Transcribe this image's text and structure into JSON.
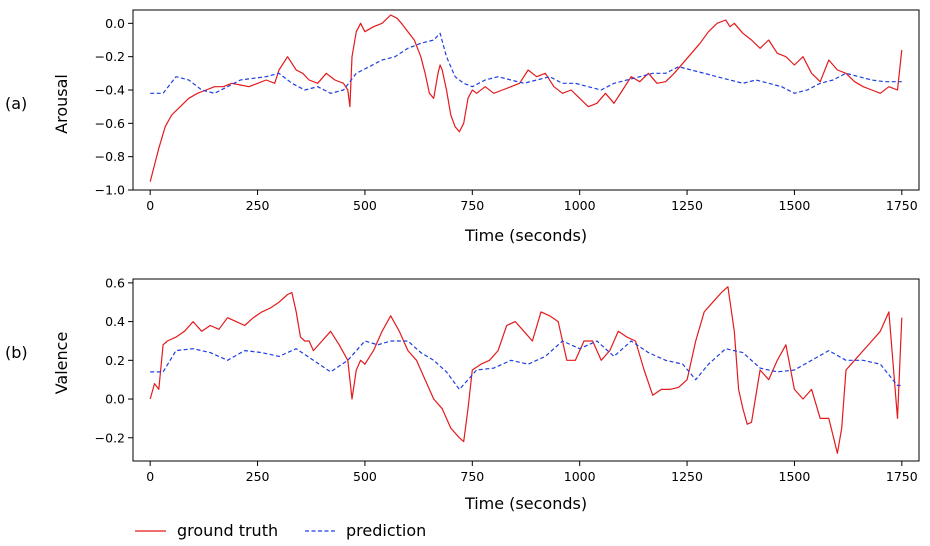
{
  "chart_data": [
    {
      "type": "line",
      "panel_label": "(a)",
      "xlabel": "Time (seconds)",
      "ylabel": "Arousal",
      "xlim": [
        -40,
        1790
      ],
      "ylim": [
        -1.0,
        0.08
      ],
      "xticks": [
        0,
        250,
        500,
        750,
        1000,
        1250,
        1500,
        1750
      ],
      "xtick_labels": [
        "0",
        "250",
        "500",
        "750",
        "1000",
        "1250",
        "1500",
        "1750"
      ],
      "yticks": [
        0.0,
        -0.2,
        -0.4,
        -0.6,
        -0.8,
        -1.0
      ],
      "ytick_labels": [
        "0.0",
        "−0.2",
        "−0.4",
        "−0.6",
        "−0.8",
        "−1.0"
      ],
      "grid": false,
      "series": [
        {
          "name": "ground truth",
          "color": "#e41a1c",
          "dash": "solid",
          "x": [
            0,
            10,
            20,
            35,
            50,
            70,
            90,
            110,
            130,
            150,
            170,
            190,
            210,
            230,
            250,
            270,
            290,
            300,
            320,
            340,
            355,
            370,
            390,
            410,
            430,
            450,
            460,
            465,
            470,
            480,
            490,
            500,
            520,
            540,
            560,
            575,
            585,
            600,
            615,
            630,
            640,
            650,
            660,
            670,
            675,
            680,
            690,
            700,
            710,
            720,
            730,
            740,
            750,
            760,
            780,
            800,
            820,
            840,
            860,
            880,
            900,
            920,
            940,
            960,
            980,
            1000,
            1020,
            1040,
            1060,
            1080,
            1100,
            1120,
            1140,
            1160,
            1180,
            1200,
            1220,
            1240,
            1260,
            1280,
            1300,
            1320,
            1340,
            1350,
            1360,
            1380,
            1400,
            1420,
            1440,
            1460,
            1480,
            1500,
            1520,
            1540,
            1560,
            1580,
            1600,
            1620,
            1640,
            1660,
            1680,
            1700,
            1720,
            1740,
            1750
          ],
          "y": [
            -0.95,
            -0.85,
            -0.75,
            -0.62,
            -0.55,
            -0.5,
            -0.45,
            -0.42,
            -0.4,
            -0.38,
            -0.38,
            -0.36,
            -0.37,
            -0.38,
            -0.36,
            -0.34,
            -0.36,
            -0.28,
            -0.2,
            -0.28,
            -0.3,
            -0.34,
            -0.36,
            -0.3,
            -0.34,
            -0.36,
            -0.4,
            -0.5,
            -0.2,
            -0.05,
            0.0,
            -0.05,
            -0.02,
            0.0,
            0.05,
            0.03,
            0.0,
            -0.05,
            -0.1,
            -0.2,
            -0.3,
            -0.42,
            -0.45,
            -0.3,
            -0.25,
            -0.28,
            -0.4,
            -0.55,
            -0.62,
            -0.65,
            -0.6,
            -0.45,
            -0.4,
            -0.42,
            -0.38,
            -0.42,
            -0.4,
            -0.38,
            -0.36,
            -0.28,
            -0.32,
            -0.3,
            -0.38,
            -0.42,
            -0.4,
            -0.45,
            -0.5,
            -0.48,
            -0.42,
            -0.48,
            -0.4,
            -0.32,
            -0.35,
            -0.3,
            -0.36,
            -0.35,
            -0.3,
            -0.24,
            -0.18,
            -0.12,
            -0.05,
            0.0,
            0.02,
            -0.02,
            0.0,
            -0.06,
            -0.1,
            -0.15,
            -0.1,
            -0.18,
            -0.2,
            -0.25,
            -0.2,
            -0.3,
            -0.35,
            -0.22,
            -0.28,
            -0.3,
            -0.35,
            -0.38,
            -0.4,
            -0.42,
            -0.38,
            -0.4,
            -0.16
          ]
        },
        {
          "name": "prediction",
          "color": "#1f3fe0",
          "dash": "dashed",
          "x": [
            0,
            30,
            60,
            90,
            120,
            150,
            180,
            210,
            240,
            270,
            300,
            330,
            360,
            390,
            420,
            450,
            480,
            510,
            540,
            570,
            600,
            630,
            660,
            675,
            690,
            710,
            730,
            750,
            780,
            810,
            840,
            870,
            900,
            930,
            960,
            990,
            1020,
            1050,
            1080,
            1110,
            1140,
            1170,
            1200,
            1230,
            1260,
            1290,
            1320,
            1350,
            1380,
            1410,
            1440,
            1470,
            1500,
            1530,
            1560,
            1590,
            1620,
            1650,
            1680,
            1710,
            1740,
            1750
          ],
          "y": [
            -0.42,
            -0.42,
            -0.32,
            -0.34,
            -0.4,
            -0.42,
            -0.38,
            -0.34,
            -0.33,
            -0.32,
            -0.3,
            -0.36,
            -0.4,
            -0.38,
            -0.42,
            -0.4,
            -0.3,
            -0.26,
            -0.22,
            -0.2,
            -0.15,
            -0.12,
            -0.1,
            -0.06,
            -0.2,
            -0.32,
            -0.36,
            -0.38,
            -0.34,
            -0.32,
            -0.34,
            -0.36,
            -0.34,
            -0.32,
            -0.36,
            -0.36,
            -0.38,
            -0.4,
            -0.36,
            -0.34,
            -0.32,
            -0.3,
            -0.3,
            -0.26,
            -0.28,
            -0.3,
            -0.32,
            -0.34,
            -0.36,
            -0.34,
            -0.36,
            -0.38,
            -0.42,
            -0.4,
            -0.36,
            -0.34,
            -0.3,
            -0.32,
            -0.34,
            -0.35,
            -0.35,
            -0.35
          ]
        }
      ]
    },
    {
      "type": "line",
      "panel_label": "(b)",
      "xlabel": "Time (seconds)",
      "ylabel": "Valence",
      "xlim": [
        -40,
        1790
      ],
      "ylim": [
        -0.32,
        0.62
      ],
      "xticks": [
        0,
        250,
        500,
        750,
        1000,
        1250,
        1500,
        1750
      ],
      "xtick_labels": [
        "0",
        "250",
        "500",
        "750",
        "1000",
        "1250",
        "1500",
        "1750"
      ],
      "yticks": [
        0.6,
        0.4,
        0.2,
        0.0,
        -0.2
      ],
      "ytick_labels": [
        "0.6",
        "0.4",
        "0.2",
        "0.0",
        "−0.2"
      ],
      "grid": false,
      "series": [
        {
          "name": "ground truth",
          "color": "#e41a1c",
          "dash": "solid",
          "x": [
            0,
            10,
            20,
            30,
            40,
            60,
            80,
            100,
            120,
            140,
            160,
            180,
            200,
            220,
            240,
            260,
            280,
            300,
            320,
            330,
            340,
            350,
            360,
            370,
            380,
            400,
            420,
            440,
            460,
            470,
            480,
            490,
            500,
            520,
            540,
            560,
            580,
            600,
            620,
            640,
            660,
            680,
            700,
            720,
            730,
            740,
            750,
            770,
            790,
            810,
            830,
            850,
            870,
            890,
            910,
            930,
            950,
            970,
            990,
            1010,
            1030,
            1050,
            1070,
            1090,
            1110,
            1130,
            1150,
            1170,
            1190,
            1210,
            1230,
            1250,
            1270,
            1290,
            1310,
            1330,
            1345,
            1360,
            1370,
            1380,
            1390,
            1400,
            1420,
            1440,
            1460,
            1480,
            1500,
            1520,
            1540,
            1560,
            1580,
            1600,
            1610,
            1620,
            1640,
            1660,
            1680,
            1700,
            1720,
            1740,
            1750
          ],
          "y": [
            0.0,
            0.08,
            0.05,
            0.28,
            0.3,
            0.32,
            0.35,
            0.4,
            0.35,
            0.38,
            0.36,
            0.42,
            0.4,
            0.38,
            0.42,
            0.45,
            0.47,
            0.5,
            0.54,
            0.55,
            0.45,
            0.32,
            0.3,
            0.3,
            0.25,
            0.3,
            0.35,
            0.28,
            0.2,
            0.0,
            0.15,
            0.2,
            0.18,
            0.25,
            0.35,
            0.43,
            0.35,
            0.25,
            0.2,
            0.1,
            0.0,
            -0.05,
            -0.15,
            -0.2,
            -0.22,
            -0.05,
            0.15,
            0.18,
            0.2,
            0.25,
            0.38,
            0.4,
            0.35,
            0.3,
            0.45,
            0.43,
            0.4,
            0.2,
            0.2,
            0.3,
            0.3,
            0.2,
            0.25,
            0.35,
            0.32,
            0.3,
            0.15,
            0.02,
            0.05,
            0.05,
            0.06,
            0.1,
            0.3,
            0.45,
            0.5,
            0.55,
            0.58,
            0.35,
            0.05,
            -0.05,
            -0.13,
            -0.12,
            0.15,
            0.1,
            0.2,
            0.28,
            0.05,
            0.0,
            0.05,
            -0.1,
            -0.1,
            -0.28,
            -0.15,
            0.15,
            0.2,
            0.25,
            0.3,
            0.35,
            0.45,
            -0.1,
            0.42
          ]
        },
        {
          "name": "prediction",
          "color": "#1f3fe0",
          "dash": "dashed",
          "x": [
            0,
            30,
            60,
            100,
            140,
            180,
            220,
            260,
            300,
            340,
            380,
            420,
            460,
            500,
            530,
            560,
            600,
            630,
            660,
            690,
            720,
            740,
            760,
            800,
            840,
            880,
            920,
            960,
            1000,
            1040,
            1080,
            1120,
            1160,
            1200,
            1240,
            1270,
            1300,
            1340,
            1380,
            1420,
            1460,
            1500,
            1540,
            1580,
            1620,
            1660,
            1700,
            1740,
            1750
          ],
          "y": [
            0.14,
            0.14,
            0.25,
            0.26,
            0.24,
            0.2,
            0.25,
            0.24,
            0.22,
            0.26,
            0.2,
            0.14,
            0.2,
            0.3,
            0.28,
            0.3,
            0.3,
            0.24,
            0.2,
            0.14,
            0.05,
            0.1,
            0.15,
            0.16,
            0.2,
            0.18,
            0.22,
            0.3,
            0.26,
            0.3,
            0.22,
            0.3,
            0.24,
            0.2,
            0.18,
            0.1,
            0.18,
            0.26,
            0.24,
            0.16,
            0.14,
            0.15,
            0.2,
            0.25,
            0.2,
            0.2,
            0.18,
            0.07,
            0.07
          ]
        }
      ]
    }
  ],
  "legend": {
    "items": [
      {
        "label": "ground truth",
        "color": "#e41a1c",
        "dash": "solid"
      },
      {
        "label": "prediction",
        "color": "#1f3fe0",
        "dash": "dashed"
      }
    ]
  }
}
